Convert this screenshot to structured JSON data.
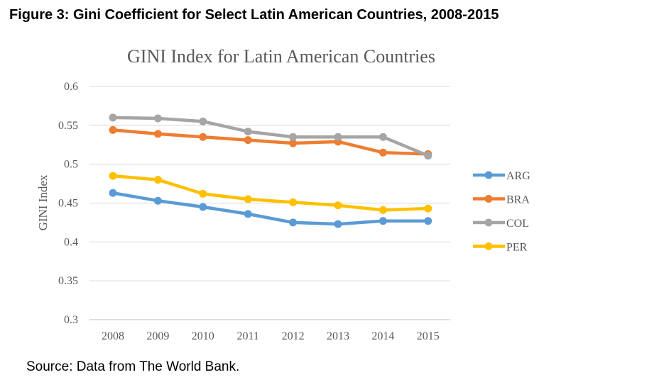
{
  "figure_title": "Figure 3: Gini Coefficient for Select Latin American Countries, 2008-2015",
  "source_note": "Source: Data from The World Bank.",
  "chart_data": {
    "type": "line",
    "title": "GINI Index for Latin American Countries",
    "xlabel": "",
    "ylabel": "GINI Index",
    "categories": [
      "2008",
      "2009",
      "2010",
      "2011",
      "2012",
      "2013",
      "2014",
      "2015"
    ],
    "ylim": [
      0.3,
      0.6
    ],
    "yticks": [
      0.3,
      0.35,
      0.4,
      0.45,
      0.5,
      0.55,
      0.6
    ],
    "ytick_labels": [
      "0.3",
      "0.35",
      "0.4",
      "0.45",
      "0.5",
      "0.55",
      "0.6"
    ],
    "grid": true,
    "legend_position": "right",
    "series": [
      {
        "name": "ARG",
        "color": "#5B9BD5",
        "values": [
          0.463,
          0.453,
          0.445,
          0.436,
          0.425,
          0.423,
          0.427,
          0.427
        ]
      },
      {
        "name": "BRA",
        "color": "#ED7D31",
        "values": [
          0.544,
          0.539,
          0.535,
          0.531,
          0.527,
          0.529,
          0.515,
          0.513
        ]
      },
      {
        "name": "COL",
        "color": "#A5A5A5",
        "values": [
          0.56,
          0.559,
          0.555,
          0.542,
          0.535,
          0.535,
          0.535,
          0.511
        ]
      },
      {
        "name": "PER",
        "color": "#FFC000",
        "values": [
          0.485,
          0.48,
          0.462,
          0.455,
          0.451,
          0.447,
          0.441,
          0.443
        ]
      }
    ]
  }
}
